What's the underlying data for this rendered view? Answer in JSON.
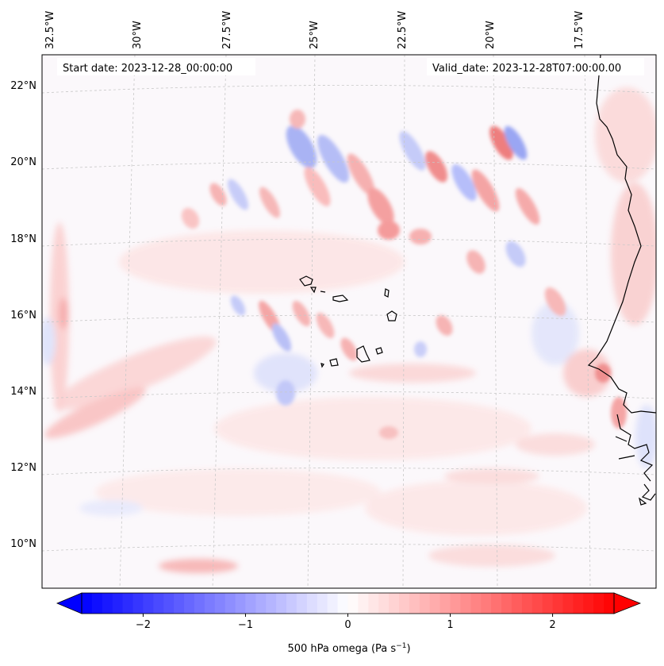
{
  "map": {
    "start_label": "Start date: 2023-12-28_00:00:00",
    "valid_label": "Valid_date: 2023-12-28T07:00:00.00",
    "longitude_labels": [
      "32.5°W",
      "30°W",
      "27.5°W",
      "25°W",
      "22.5°W",
      "20°W",
      "17.5°W"
    ],
    "latitude_labels": [
      "22°N",
      "20°N",
      "18°N",
      "16°N",
      "14°N",
      "12°N",
      "10°N"
    ],
    "field": "500 hPa omega",
    "coastline_color": "#000000",
    "gridline_color": "#b0b0b0"
  },
  "colorbar": {
    "label_text": "500 hPa omega (Pa s",
    "label_exponent": "−1",
    "label_suffix": ")",
    "ticks": [
      "−2",
      "−1",
      "0",
      "1",
      "2"
    ],
    "tick_values": [
      -2,
      -1,
      0,
      1,
      2
    ],
    "range": [
      -2.6,
      2.6
    ],
    "colormap": "bwr",
    "low_color": "#0000ff",
    "mid_color": "#ffffff",
    "high_color": "#ff0000"
  }
}
